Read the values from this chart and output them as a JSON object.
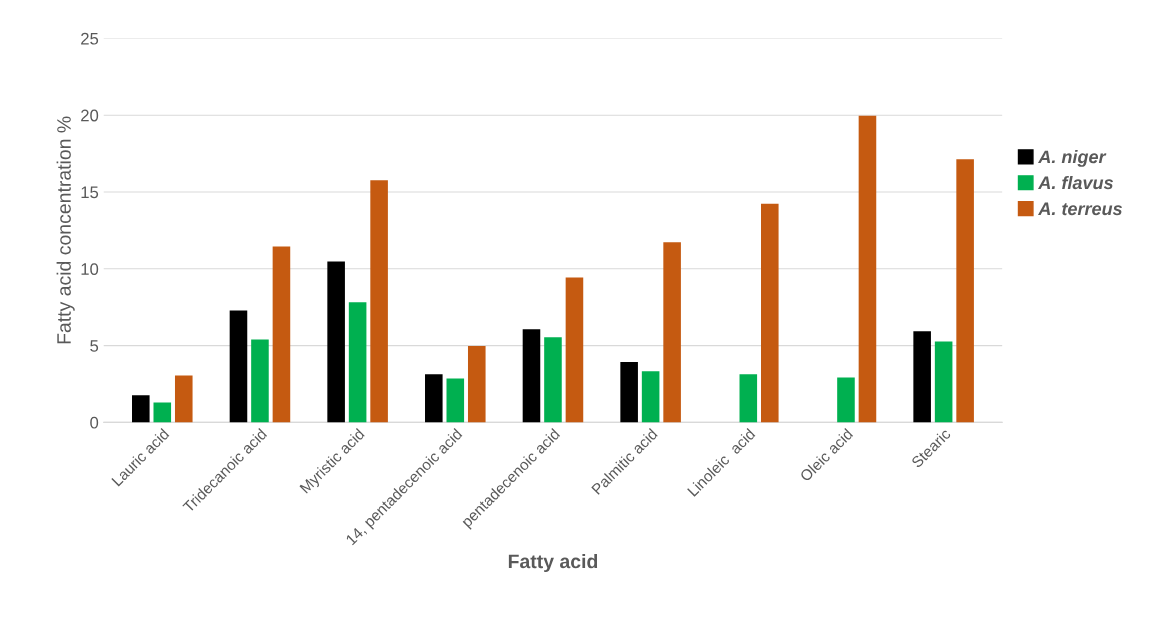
{
  "chart_data": {
    "type": "bar",
    "xlabel": "Fatty acid",
    "ylabel": "Fatty acid concentration %",
    "categories": [
      "Lauric acid",
      "Tridecanoic acid",
      "Myristic acid",
      "14, pentadecenoic acid",
      "pentadecenoic acid",
      "Palmitic acid",
      "Linoleic  acid",
      "Oleic acid",
      "Stearic"
    ],
    "series": [
      {
        "name": "A. niger",
        "color": "#000000",
        "values": [
          1.77,
          7.28,
          10.48,
          3.13,
          6.07,
          3.93,
          null,
          null,
          5.94
        ]
      },
      {
        "name": "A. flavus",
        "color": "#00b050",
        "values": [
          1.3,
          5.4,
          7.82,
          2.85,
          5.55,
          3.33,
          3.13,
          2.92,
          5.27
        ]
      },
      {
        "name": "A. terreus",
        "color": "#c55a11",
        "values": [
          3.05,
          11.45,
          15.77,
          4.97,
          9.44,
          11.73,
          14.24,
          19.97,
          17.13
        ]
      }
    ],
    "ylim": [
      0,
      25
    ],
    "yticks": [
      0,
      5,
      10,
      15,
      20,
      25
    ],
    "grid": "y",
    "legend": "right"
  }
}
